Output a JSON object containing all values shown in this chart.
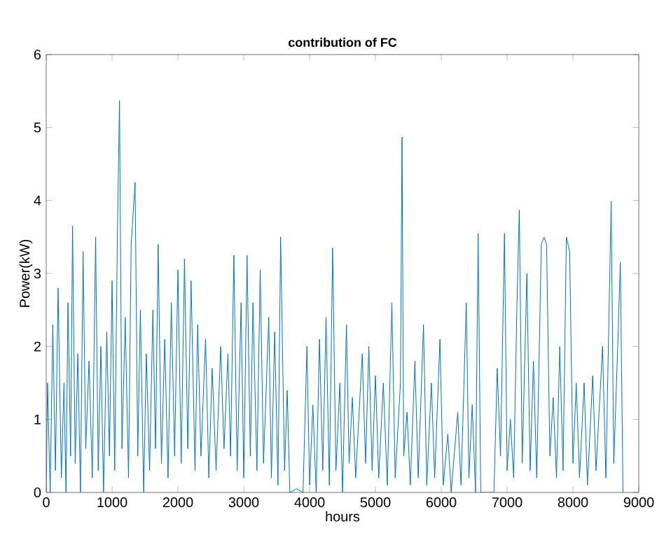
{
  "chart_data": {
    "type": "line",
    "title": "contribution of FC",
    "xlabel": "hours",
    "ylabel": "Power(kW)",
    "xlim": [
      0,
      9000
    ],
    "xticks": [
      0,
      1000,
      2000,
      3000,
      4000,
      5000,
      6000,
      7000,
      8000,
      9000
    ],
    "ylim": [
      0,
      6
    ],
    "yticks": [
      0,
      1,
      2,
      3,
      4,
      5,
      6
    ],
    "grid": false,
    "marker": "none",
    "line_style": "solid",
    "series": [
      {
        "color": "#0072bd",
        "x": [
          0,
          20,
          60,
          100,
          140,
          180,
          230,
          270,
          300,
          330,
          370,
          400,
          440,
          480,
          520,
          560,
          600,
          650,
          700,
          750,
          790,
          830,
          870,
          920,
          960,
          1000,
          1040,
          1080,
          1113,
          1150,
          1200,
          1250,
          1290,
          1350,
          1390,
          1430,
          1480,
          1520,
          1570,
          1620,
          1660,
          1700,
          1750,
          1800,
          1850,
          1900,
          1950,
          2000,
          2050,
          2100,
          2150,
          2200,
          2260,
          2300,
          2350,
          2420,
          2470,
          2520,
          2580,
          2650,
          2700,
          2760,
          2800,
          2850,
          2900,
          2960,
          3000,
          3050,
          3100,
          3140,
          3200,
          3250,
          3300,
          3380,
          3420,
          3470,
          3520,
          3560,
          3620,
          3660,
          3700,
          3800,
          3900,
          3960,
          4000,
          4050,
          4100,
          4150,
          4200,
          4250,
          4300,
          4350,
          4400,
          4460,
          4500,
          4560,
          4600,
          4650,
          4700,
          4800,
          4850,
          4900,
          4950,
          5000,
          5050,
          5120,
          5180,
          5250,
          5300,
          5380,
          5404,
          5430,
          5480,
          5530,
          5600,
          5650,
          5730,
          5780,
          5850,
          5900,
          5980,
          6030,
          6100,
          6150,
          6250,
          6300,
          6380,
          6420,
          6470,
          6520,
          6560,
          6600,
          6800,
          6850,
          6900,
          6960,
          7000,
          7050,
          7100,
          7150,
          7185,
          7230,
          7300,
          7350,
          7400,
          7450,
          7520,
          7560,
          7600,
          7650,
          7700,
          7750,
          7800,
          7850,
          7900,
          7950,
          8000,
          8050,
          8100,
          8170,
          8220,
          8300,
          8350,
          8450,
          8500,
          8581,
          8620,
          8680,
          8720,
          8760
        ],
        "values": [
          0,
          1.5,
          0,
          2.3,
          0.3,
          2.8,
          0.2,
          1.5,
          0,
          2.6,
          0.5,
          3.65,
          0.4,
          1.9,
          0,
          3.3,
          0.6,
          1.8,
          0.2,
          3.5,
          0.3,
          2.0,
          0,
          2.2,
          0.5,
          2.9,
          0.3,
          3.45,
          5.37,
          0.6,
          2.4,
          0.2,
          3.4,
          4.25,
          0.5,
          2.5,
          0,
          1.9,
          0.3,
          2.5,
          0.6,
          3.4,
          0.4,
          2.1,
          0.2,
          2.6,
          0.5,
          3.05,
          0.4,
          3.2,
          0.6,
          2.9,
          0.3,
          2.3,
          0.5,
          2.1,
          0.2,
          1.7,
          0.3,
          2.0,
          0.6,
          1.9,
          0.5,
          3.25,
          0.3,
          2.6,
          0.2,
          3.25,
          0.5,
          2.6,
          0.3,
          3.05,
          0.4,
          2.4,
          0.2,
          2.2,
          0.1,
          3.5,
          0.3,
          1.4,
          0,
          0.05,
          0,
          2.0,
          0.1,
          1.2,
          0,
          2.1,
          0.3,
          2.4,
          0.1,
          3.35,
          0.3,
          1.5,
          0,
          2.3,
          0.4,
          1.3,
          0.2,
          1.9,
          0.4,
          2.0,
          0.3,
          1.6,
          0.2,
          1.5,
          0.1,
          2.6,
          0.2,
          1.5,
          4.87,
          0.5,
          1.1,
          0.1,
          1.8,
          0.2,
          2.3,
          0.1,
          1.5,
          0.2,
          2.1,
          0.1,
          0.8,
          0,
          1.1,
          0.1,
          2.6,
          0.2,
          1.2,
          0,
          3.55,
          0,
          0,
          1.7,
          0.5,
          3.55,
          0.3,
          1.0,
          0.2,
          2.6,
          3.87,
          0.4,
          3.0,
          0.3,
          1.8,
          0.2,
          3.4,
          3.5,
          3.4,
          0.5,
          1.3,
          0.2,
          2.0,
          0.3,
          3.5,
          3.3,
          0.4,
          1.5,
          0.2,
          1.5,
          0.1,
          1.6,
          0.3,
          2.0,
          0.2,
          3.99,
          0.4,
          2.0,
          3.15,
          0
        ]
      }
    ]
  }
}
